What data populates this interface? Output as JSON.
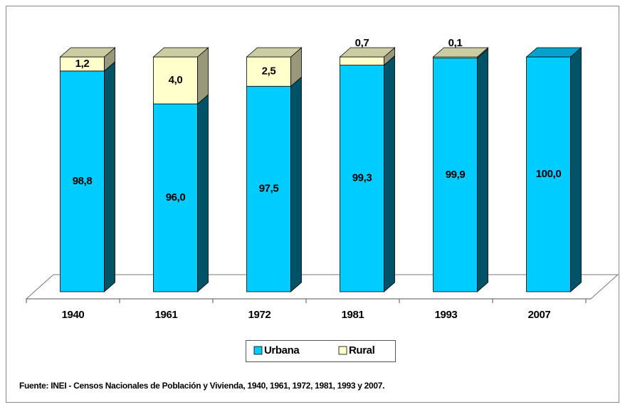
{
  "chart_data": {
    "type": "bar3d_stacked",
    "categories": [
      "1940",
      "1961",
      "1972",
      "1981",
      "1993",
      "2007"
    ],
    "series": [
      {
        "name": "Urbana",
        "color": "#00ccff",
        "values": [
          98.8,
          96.0,
          97.5,
          99.3,
          99.9,
          100.0
        ],
        "value_labels": [
          "98,8",
          "96,0",
          "97,5",
          "99,3",
          "99,9",
          "100,0"
        ]
      },
      {
        "name": "Rural",
        "color": "#ffffcc",
        "values": [
          1.2,
          4.0,
          2.5,
          0.7,
          0.1,
          null
        ],
        "value_labels": [
          "1,2",
          "4,0",
          "2,5",
          "0,7",
          "0,1",
          null
        ]
      }
    ],
    "ylim": [
      80,
      100
    ],
    "legend": "bottom",
    "note": "Fuente: INEI - Censos Nacionales de Población y Vivienda, 1940, 1961, 1972, 1981, 1993 y 2007."
  }
}
